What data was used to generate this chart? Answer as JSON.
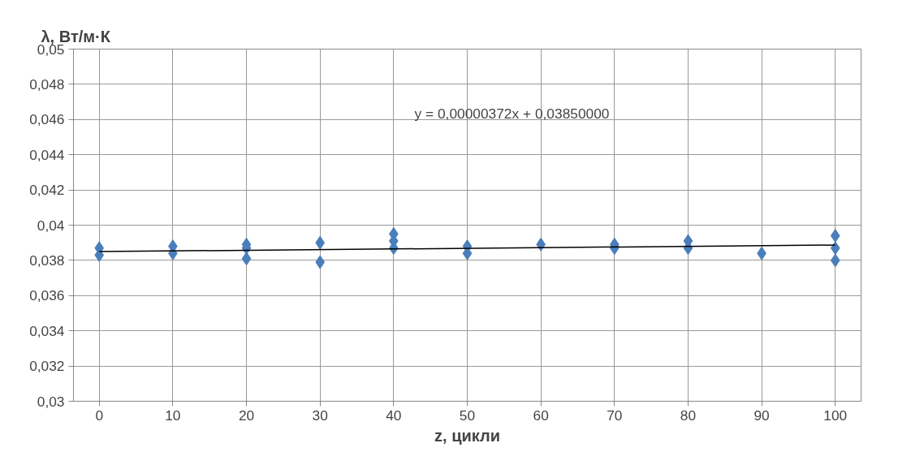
{
  "chart_data": {
    "type": "scatter",
    "xlabel": "z, цикли",
    "ylabel": "λ, Вт/м·К",
    "xlim": [
      -3.5,
      103.5
    ],
    "ylim": [
      0.03,
      0.05
    ],
    "xticks": [
      0,
      10,
      20,
      30,
      40,
      50,
      60,
      70,
      80,
      90,
      100
    ],
    "yticks": [
      {
        "value": 0.03,
        "label": "0,03"
      },
      {
        "value": 0.032,
        "label": "0,032"
      },
      {
        "value": 0.034,
        "label": "0,034"
      },
      {
        "value": 0.036,
        "label": "0,036"
      },
      {
        "value": 0.038,
        "label": "0,038"
      },
      {
        "value": 0.04,
        "label": "0,04"
      },
      {
        "value": 0.042,
        "label": "0,042"
      },
      {
        "value": 0.044,
        "label": "0,044"
      },
      {
        "value": 0.046,
        "label": "0,046"
      },
      {
        "value": 0.048,
        "label": "0,048"
      },
      {
        "value": 0.05,
        "label": "0,05"
      }
    ],
    "grid": true,
    "annotations": [
      "y = 0,00000372x + 0,03850000"
    ],
    "series": [
      {
        "marker": "diamond",
        "color": "#4a7ebb",
        "x": [
          0,
          0,
          10,
          10,
          20,
          20,
          20,
          30,
          30,
          40,
          40,
          40,
          50,
          50,
          60,
          70,
          70,
          80,
          80,
          90,
          100,
          100,
          100
        ],
        "values": [
          0.0387,
          0.0383,
          0.0388,
          0.0384,
          0.0389,
          0.0387,
          0.0381,
          0.039,
          0.0379,
          0.0395,
          0.0391,
          0.0387,
          0.0388,
          0.0384,
          0.0389,
          0.0389,
          0.0387,
          0.0391,
          0.0387,
          0.0384,
          0.0394,
          0.0387,
          0.038
        ]
      },
      {
        "type": "line",
        "color": "#000000",
        "x": [
          0,
          100
        ],
        "values": [
          0.0385,
          0.03887
        ]
      }
    ]
  }
}
